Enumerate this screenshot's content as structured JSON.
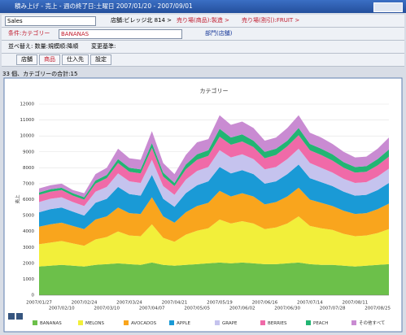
{
  "window": {
    "title": "積み上げ - 売上 - 週の終了日:土曜日 2007/01/20 - 2007/09/01",
    "measure": "Sales",
    "breadcrumbs": [
      "店舗:ビレッジ北 814 >",
      "売り場(商品):製造 >",
      "売り場(割引):FRUIT >"
    ],
    "condition_label": "条件:カテゴリー",
    "condition_value": "BANANAS",
    "condition_link": "部門(店舗)",
    "sort": "並べ替え: 数量:規模順:降順",
    "change": "変更基準:",
    "tabs": [
      "店舗",
      "商品",
      "仕入先",
      "設定"
    ],
    "status": "33 個、カテゴリーの合計:15"
  },
  "chart_data": {
    "type": "stacked_area",
    "title": "カテゴリー",
    "y_label": "売上",
    "categories": [
      "2007/01/27",
      null,
      "2007/02/10",
      null,
      "2007/02/24",
      null,
      "2007/03/10",
      null,
      "2007/03/24",
      null,
      "2007/04/07",
      null,
      "2007/04/21",
      null,
      "2007/05/05",
      null,
      "2007/05/19",
      null,
      "2007/06/02",
      null,
      "2007/06/16",
      null,
      "2007/06/30",
      null,
      "2007/07/14",
      null,
      "2007/07/28",
      null,
      "2007/08/11",
      null,
      "2007/08/25",
      null
    ],
    "ylim": [
      0,
      12000
    ],
    "yticks": [
      0,
      1000,
      2000,
      3000,
      4000,
      5000,
      6000,
      7000,
      8000,
      9000,
      10000,
      11000,
      12000
    ],
    "grid": true,
    "series": [
      {
        "name": "BANANAS",
        "color": "#6cc04a",
        "values": [
          1800,
          1850,
          1900,
          1850,
          1800,
          1900,
          1950,
          2000,
          1950,
          1900,
          2050,
          1900,
          1850,
          1900,
          1950,
          2000,
          2050,
          2000,
          2050,
          2000,
          1950,
          1950,
          2000,
          2050,
          1950,
          1900,
          1900,
          1850,
          1800,
          1850,
          1900,
          1950
        ]
      },
      {
        "name": "MELONS",
        "color": "#f2ef3a",
        "values": [
          1400,
          1450,
          1500,
          1400,
          1300,
          1600,
          1700,
          2000,
          1800,
          1800,
          2400,
          1700,
          1500,
          1900,
          2100,
          2200,
          2700,
          2500,
          2600,
          2500,
          2200,
          2300,
          2500,
          2900,
          2400,
          2300,
          2200,
          2000,
          1900,
          1900,
          2000,
          2200
        ]
      },
      {
        "name": "AVOCADOS",
        "color": "#f9a51d",
        "values": [
          1100,
          1150,
          1150,
          1100,
          1050,
          1250,
          1300,
          1500,
          1400,
          1400,
          1700,
          1350,
          1200,
          1400,
          1550,
          1600,
          1800,
          1700,
          1750,
          1700,
          1550,
          1600,
          1700,
          1800,
          1650,
          1600,
          1500,
          1450,
          1400,
          1400,
          1500,
          1600
        ]
      },
      {
        "name": "APPLE",
        "color": "#1a9ad6",
        "values": [
          900,
          950,
          950,
          900,
          850,
          1050,
          1100,
          1300,
          1200,
          1150,
          1400,
          1100,
          1000,
          1200,
          1300,
          1350,
          1500,
          1450,
          1450,
          1400,
          1300,
          1300,
          1400,
          1450,
          1350,
          1300,
          1250,
          1200,
          1150,
          1150,
          1200,
          1300
        ]
      },
      {
        "name": "GRAPE",
        "color": "#c5c3ee",
        "values": [
          650,
          650,
          650,
          600,
          600,
          700,
          750,
          850,
          800,
          800,
          950,
          800,
          750,
          850,
          900,
          900,
          1050,
          1000,
          1000,
          950,
          900,
          900,
          950,
          1000,
          950,
          900,
          850,
          800,
          800,
          800,
          850,
          900
        ]
      },
      {
        "name": "BERRIES",
        "color": "#f06aa8",
        "values": [
          450,
          450,
          450,
          400,
          400,
          500,
          550,
          650,
          600,
          600,
          750,
          600,
          550,
          650,
          700,
          700,
          850,
          800,
          800,
          750,
          700,
          750,
          800,
          850,
          800,
          800,
          750,
          700,
          650,
          650,
          700,
          750
        ]
      },
      {
        "name": "PEACH",
        "color": "#22b573",
        "values": [
          150,
          150,
          150,
          150,
          150,
          200,
          200,
          250,
          250,
          250,
          300,
          250,
          200,
          300,
          350,
          350,
          500,
          450,
          450,
          400,
          400,
          400,
          350,
          450,
          400,
          400,
          400,
          350,
          350,
          350,
          400,
          450
        ]
      },
      {
        "name": "その他すべて",
        "color": "#c98bd2",
        "values": [
          250,
          250,
          250,
          200,
          250,
          400,
          450,
          650,
          600,
          600,
          750,
          600,
          550,
          600,
          750,
          700,
          850,
          800,
          800,
          800,
          700,
          700,
          800,
          800,
          700,
          700,
          650,
          650,
          600,
          600,
          650,
          750
        ]
      }
    ]
  }
}
